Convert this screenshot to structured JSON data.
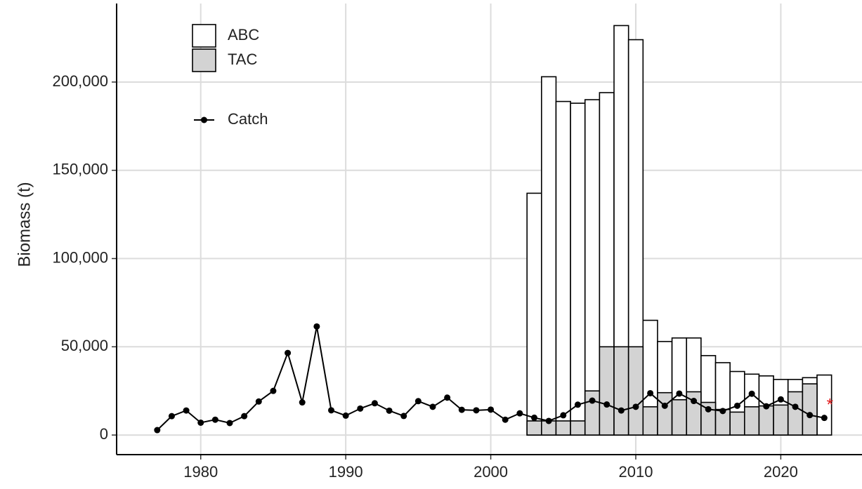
{
  "chart_data": {
    "type": "bar",
    "x": [
      1977,
      1978,
      1979,
      1980,
      1981,
      1982,
      1983,
      1984,
      1985,
      1986,
      1987,
      1988,
      1989,
      1990,
      1991,
      1992,
      1993,
      1994,
      1995,
      1996,
      1997,
      1998,
      1999,
      2000,
      2001,
      2002,
      2003,
      2004,
      2005,
      2006,
      2007,
      2008,
      2009,
      2010,
      2011,
      2012,
      2013,
      2014,
      2015,
      2016,
      2017,
      2018,
      2019,
      2020,
      2021,
      2022,
      2023
    ],
    "series": [
      {
        "name": "ABC",
        "type": "bar",
        "color": "#ffffff",
        "values": [
          null,
          null,
          null,
          null,
          null,
          null,
          null,
          null,
          null,
          null,
          null,
          null,
          null,
          null,
          null,
          null,
          null,
          null,
          null,
          null,
          null,
          null,
          null,
          null,
          null,
          null,
          137000,
          203000,
          189000,
          188000,
          190000,
          194000,
          232000,
          224000,
          65000,
          53000,
          55000,
          55000,
          45000,
          41000,
          36000,
          34500,
          33500,
          31500,
          31500,
          32500,
          34000
        ]
      },
      {
        "name": "TAC",
        "type": "bar",
        "color": "#d3d3d3",
        "values": [
          null,
          null,
          null,
          null,
          null,
          null,
          null,
          null,
          null,
          null,
          null,
          null,
          null,
          null,
          null,
          null,
          null,
          null,
          null,
          null,
          null,
          null,
          null,
          null,
          null,
          null,
          8000,
          8000,
          8000,
          8000,
          25000,
          50000,
          50000,
          50000,
          16000,
          24000,
          20000,
          24500,
          18500,
          14500,
          13000,
          16000,
          16500,
          17000,
          24500,
          29000,
          null
        ]
      },
      {
        "name": "Catch",
        "type": "line",
        "color": "#000000",
        "values": [
          2800,
          10700,
          13900,
          7000,
          8700,
          6800,
          10700,
          19000,
          25000,
          46500,
          18500,
          61500,
          14000,
          11000,
          15000,
          18000,
          13800,
          10800,
          19200,
          16000,
          21200,
          14300,
          14000,
          14400,
          8700,
          12300,
          9800,
          8000,
          11200,
          17200,
          19500,
          17300,
          13900,
          16000,
          23700,
          16600,
          23500,
          19300,
          14600,
          13600,
          16600,
          23400,
          16300,
          20200,
          16000,
          11300,
          9700
        ]
      }
    ],
    "projected": {
      "x": 2023,
      "value": 17800,
      "color": "#e31a1c"
    },
    "y_label": "Biomass (t)",
    "xlim": [
      1974.2,
      2025.6
    ],
    "xticks": [
      1980,
      1990,
      2000,
      2010,
      2020
    ],
    "ylim": [
      -11100,
      244500
    ],
    "yticks": [
      0,
      {
        "value": 50000,
        "label": "50,000"
      },
      {
        "value": 100000,
        "label": "100,000"
      },
      {
        "value": 150000,
        "label": "150,000"
      },
      {
        "value": 200000,
        "label": "200,000"
      }
    ],
    "grid": true
  }
}
